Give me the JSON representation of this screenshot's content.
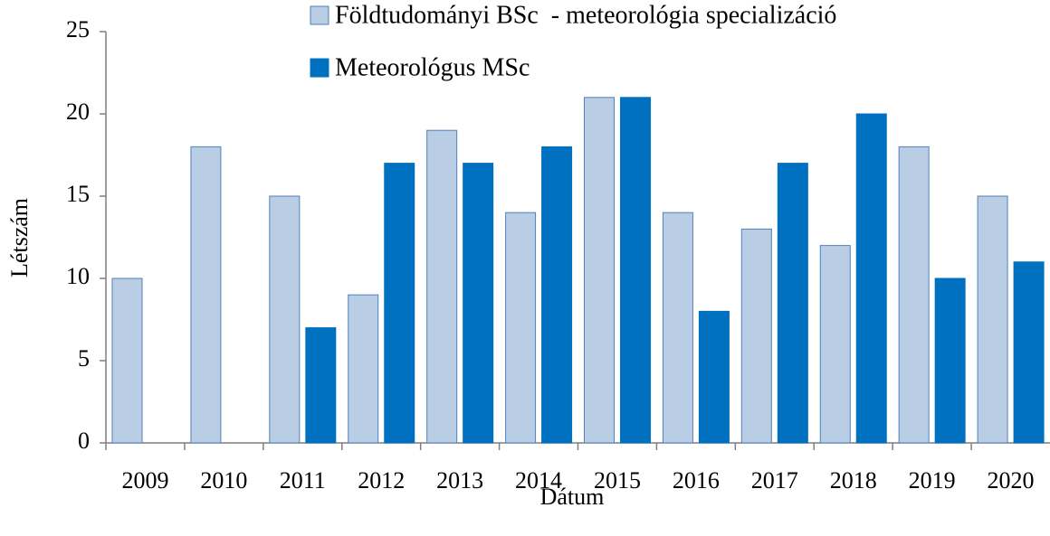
{
  "chart_data": {
    "type": "bar",
    "x_label": "Dátum",
    "y_label": "Létszám",
    "categories": [
      "2009",
      "2010",
      "2011",
      "2012",
      "2013",
      "2014",
      "2015",
      "2016",
      "2017",
      "2018",
      "2019",
      "2020"
    ],
    "series": [
      {
        "name": "Földtudományi BSc  - meteorológia specializáció",
        "color": "#b9cde5",
        "values": [
          10,
          18,
          15,
          9,
          19,
          14,
          21,
          14,
          13,
          12,
          18,
          15
        ]
      },
      {
        "name": "Meteorológus MSc",
        "color": "#0070c0",
        "values": [
          null,
          null,
          7,
          17,
          17,
          18,
          21,
          8,
          17,
          20,
          10,
          11
        ]
      }
    ],
    "ylim": [
      0,
      25
    ],
    "yticks": [
      0,
      5,
      10,
      15,
      20,
      25
    ],
    "grid": false
  }
}
